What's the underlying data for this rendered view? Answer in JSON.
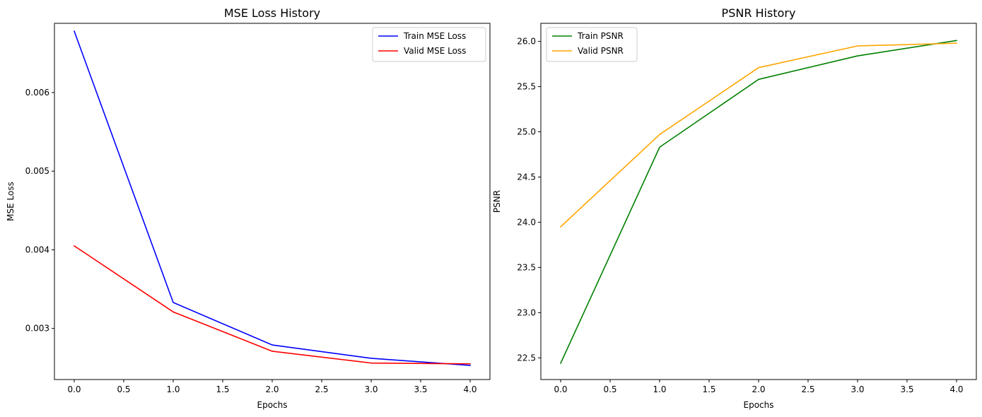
{
  "chart_data": [
    {
      "type": "line",
      "title": "MSE Loss History",
      "xlabel": "Epochs",
      "ylabel": "MSE Loss",
      "x": [
        0,
        1,
        2,
        3,
        4
      ],
      "xlim": [
        -0.2,
        4.2
      ],
      "ylim": [
        0.00235,
        0.00688
      ],
      "xticks": [
        0.0,
        0.5,
        1.0,
        1.5,
        2.0,
        2.5,
        3.0,
        3.5,
        4.0
      ],
      "xtick_labels": [
        "0.0",
        "0.5",
        "1.0",
        "1.5",
        "2.0",
        "2.5",
        "3.0",
        "3.5",
        "4.0"
      ],
      "yticks": [
        0.003,
        0.004,
        0.005,
        0.006
      ],
      "ytick_labels": [
        "0.003",
        "0.004",
        "0.005",
        "0.006"
      ],
      "grid": false,
      "legend": "upper right",
      "series": [
        {
          "name": "Train MSE Loss",
          "color": "#0000ff",
          "values": [
            0.00678,
            0.00333,
            0.00279,
            0.00262,
            0.00253
          ]
        },
        {
          "name": "Valid MSE Loss",
          "color": "#ff0000",
          "values": [
            0.00405,
            0.00321,
            0.00271,
            0.00256,
            0.00255
          ]
        }
      ]
    },
    {
      "type": "line",
      "title": "PSNR History",
      "xlabel": "Epochs",
      "ylabel": "PSNR",
      "x": [
        0,
        1,
        2,
        3,
        4
      ],
      "xlim": [
        -0.2,
        4.2
      ],
      "ylim": [
        22.26,
        26.2
      ],
      "xticks": [
        0.0,
        0.5,
        1.0,
        1.5,
        2.0,
        2.5,
        3.0,
        3.5,
        4.0
      ],
      "xtick_labels": [
        "0.0",
        "0.5",
        "1.0",
        "1.5",
        "2.0",
        "2.5",
        "3.0",
        "3.5",
        "4.0"
      ],
      "yticks": [
        22.5,
        23.0,
        23.5,
        24.0,
        24.5,
        25.0,
        25.5,
        26.0
      ],
      "ytick_labels": [
        "22.5",
        "23.0",
        "23.5",
        "24.0",
        "24.5",
        "25.0",
        "25.5",
        "26.0"
      ],
      "grid": false,
      "legend": "upper left",
      "series": [
        {
          "name": "Train PSNR",
          "color": "#008000",
          "values": [
            22.44,
            24.83,
            25.58,
            25.84,
            26.01
          ]
        },
        {
          "name": "Valid PSNR",
          "color": "#ffa500",
          "values": [
            23.95,
            24.97,
            25.71,
            25.95,
            25.98
          ]
        }
      ]
    }
  ]
}
